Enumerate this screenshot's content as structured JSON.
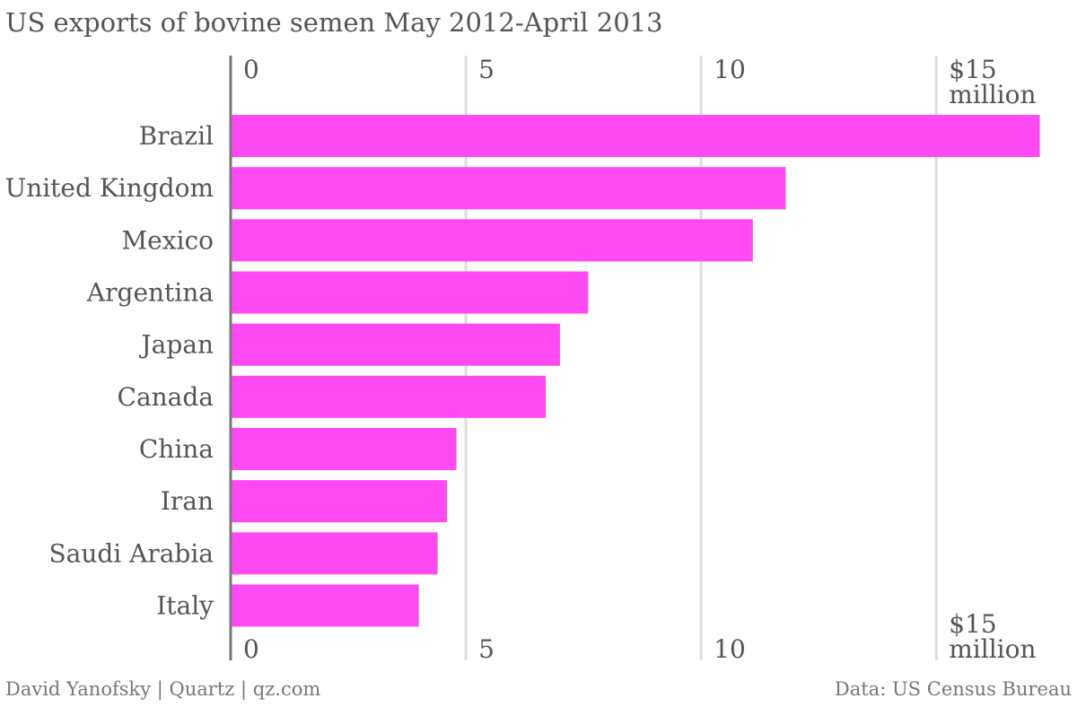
{
  "chart_data": {
    "type": "hbar",
    "title": "US exports of bovine semen May 2012-April 2013",
    "categories": [
      "Brazil",
      "United Kingdom",
      "Mexico",
      "Argentina",
      "Japan",
      "Canada",
      "China",
      "Iran",
      "Saudi Arabia",
      "Italy"
    ],
    "values": [
      17.2,
      11.8,
      11.1,
      7.6,
      7.0,
      6.7,
      4.8,
      4.6,
      4.4,
      4.0
    ],
    "color": "#ff4af4",
    "xlim": [
      0,
      17.8
    ],
    "xticks": [
      0,
      5,
      10,
      {
        "value": 15,
        "label": "$15 million"
      }
    ],
    "grid": true,
    "byline": "David Yanofsky | Quartz | qz.com",
    "source": "Data: US Census Bureau"
  }
}
